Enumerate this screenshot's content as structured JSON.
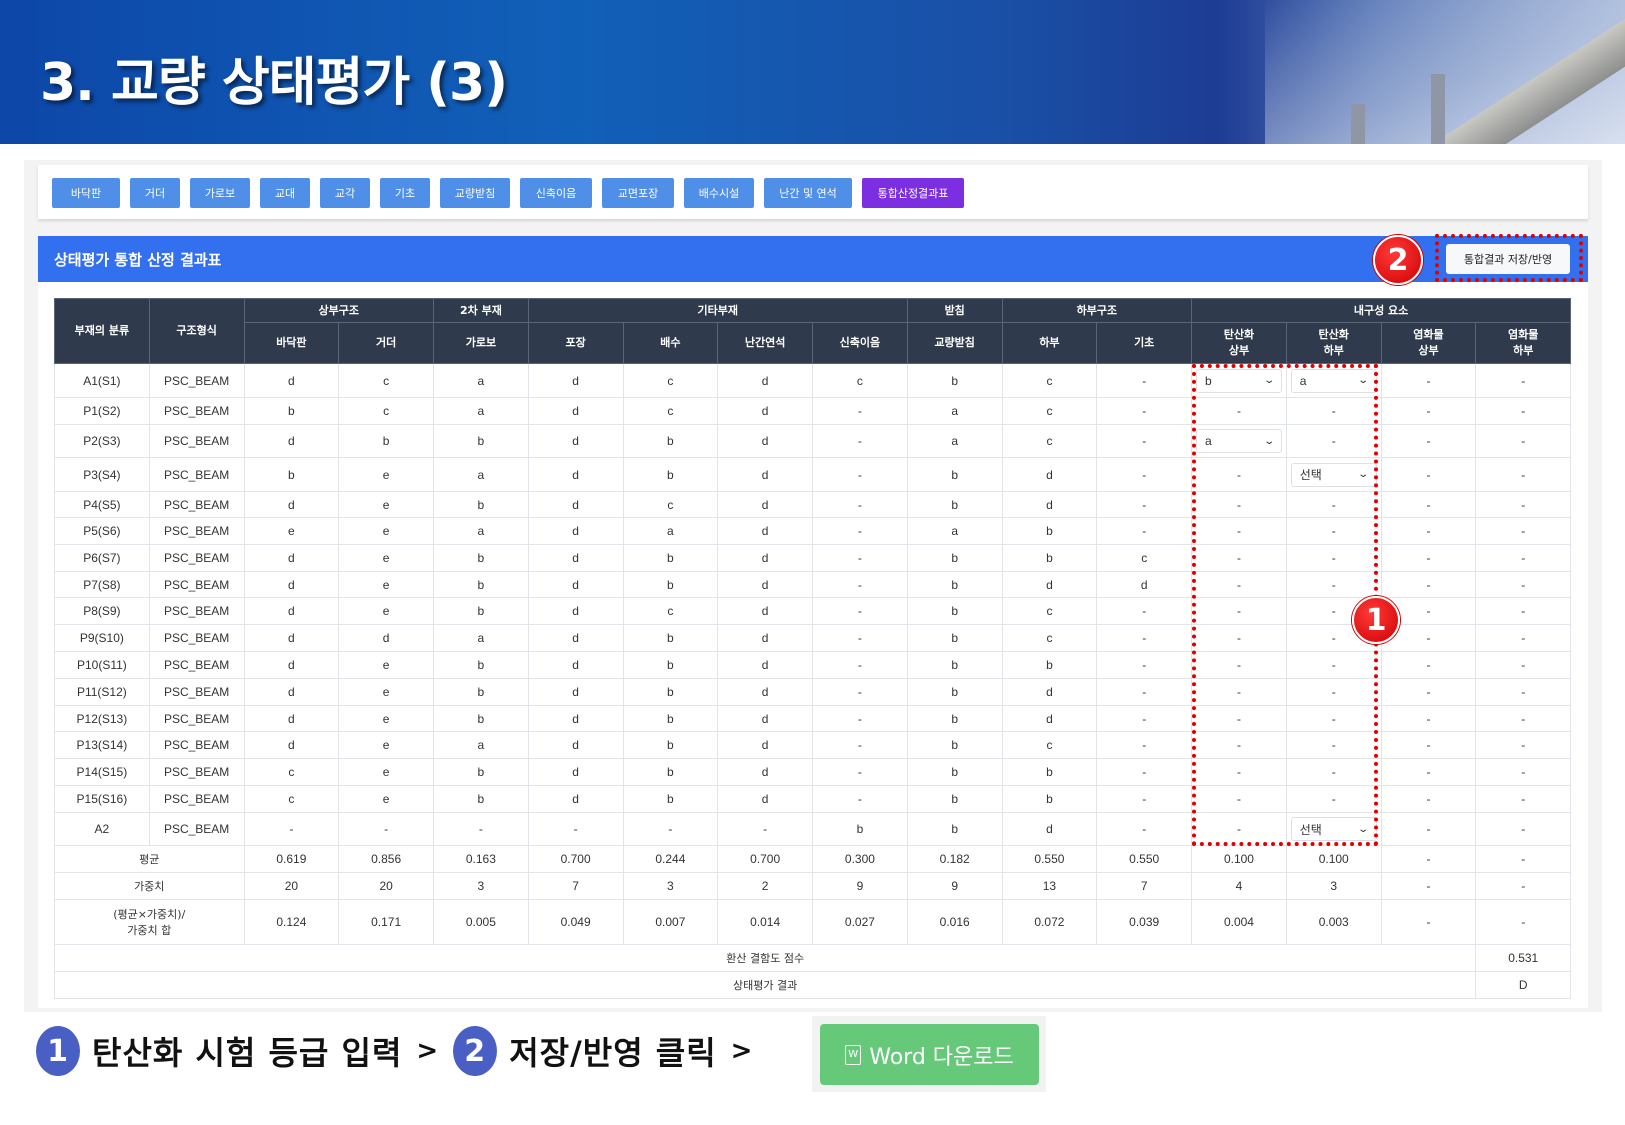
{
  "banner": {
    "title": "3. 교량 상태평가 (3)"
  },
  "tabs": [
    "바닥판",
    "거더",
    "가로보",
    "교대",
    "교각",
    "기초",
    "교량받침",
    "신축이음",
    "교면포장",
    "배수시설",
    "난간 및 연석",
    "통합산정결과표"
  ],
  "active_tab": "통합산정결과표",
  "colors": {
    "tab": "#4f8fe8",
    "active_tab": "#7b2fe0",
    "header": "#3370f0",
    "table_head": "#2f3a4c",
    "highlight": "#e00000",
    "word_button": "#66c97a"
  },
  "result": {
    "title": "상태평가 통합 산정 결과표",
    "save_label": "통합결과 저장/반영",
    "header_groups": {
      "category": "부재의 분류",
      "type": "구조형식",
      "super": "상부구조",
      "secondary": "2차 부재",
      "other": "기타부재",
      "bearing": "받침",
      "sub": "하부구조",
      "durability": "내구성 요소"
    },
    "columns": [
      "바닥판",
      "거더",
      "가로보",
      "포장",
      "배수",
      "난간연석",
      "신축이음",
      "교량받침",
      "하부",
      "기초",
      "탄산화\n상부",
      "탄산화\n하부",
      "염화물\n상부",
      "염화물\n하부"
    ],
    "rows": [
      {
        "name": "A1(S1)",
        "type": "PSC_BEAM",
        "cells": [
          "d",
          "c",
          "a",
          "d",
          "c",
          "d",
          "c",
          "b",
          "c",
          "-",
          {
            "select": "b"
          },
          {
            "select": "a"
          },
          "-",
          "-"
        ]
      },
      {
        "name": "P1(S2)",
        "type": "PSC_BEAM",
        "cells": [
          "b",
          "c",
          "a",
          "d",
          "c",
          "d",
          "-",
          "a",
          "c",
          "-",
          "-",
          "-",
          "-",
          "-"
        ]
      },
      {
        "name": "P2(S3)",
        "type": "PSC_BEAM",
        "cells": [
          "d",
          "b",
          "b",
          "d",
          "b",
          "d",
          "-",
          "a",
          "c",
          "-",
          {
            "select": "a"
          },
          "-",
          "-",
          "-"
        ]
      },
      {
        "name": "P3(S4)",
        "type": "PSC_BEAM",
        "cells": [
          "b",
          "e",
          "a",
          "d",
          "b",
          "d",
          "-",
          "b",
          "d",
          "-",
          "-",
          {
            "select": "선택"
          },
          "-",
          "-"
        ]
      },
      {
        "name": "P4(S5)",
        "type": "PSC_BEAM",
        "cells": [
          "d",
          "e",
          "b",
          "d",
          "c",
          "d",
          "-",
          "b",
          "d",
          "-",
          "-",
          "-",
          "-",
          "-"
        ]
      },
      {
        "name": "P5(S6)",
        "type": "PSC_BEAM",
        "cells": [
          "e",
          "e",
          "a",
          "d",
          "a",
          "d",
          "-",
          "a",
          "b",
          "-",
          "-",
          "-",
          "-",
          "-"
        ]
      },
      {
        "name": "P6(S7)",
        "type": "PSC_BEAM",
        "cells": [
          "d",
          "e",
          "b",
          "d",
          "b",
          "d",
          "-",
          "b",
          "b",
          "c",
          "-",
          "-",
          "-",
          "-"
        ]
      },
      {
        "name": "P7(S8)",
        "type": "PSC_BEAM",
        "cells": [
          "d",
          "e",
          "b",
          "d",
          "b",
          "d",
          "-",
          "b",
          "d",
          "d",
          "-",
          "-",
          "-",
          "-"
        ]
      },
      {
        "name": "P8(S9)",
        "type": "PSC_BEAM",
        "cells": [
          "d",
          "e",
          "b",
          "d",
          "c",
          "d",
          "-",
          "b",
          "c",
          "-",
          "-",
          "-",
          "-",
          "-"
        ]
      },
      {
        "name": "P9(S10)",
        "type": "PSC_BEAM",
        "cells": [
          "d",
          "d",
          "a",
          "d",
          "b",
          "d",
          "-",
          "b",
          "c",
          "-",
          "-",
          "-",
          "-",
          "-"
        ]
      },
      {
        "name": "P10(S11)",
        "type": "PSC_BEAM",
        "cells": [
          "d",
          "e",
          "b",
          "d",
          "b",
          "d",
          "-",
          "b",
          "b",
          "-",
          "-",
          "-",
          "-",
          "-"
        ]
      },
      {
        "name": "P11(S12)",
        "type": "PSC_BEAM",
        "cells": [
          "d",
          "e",
          "b",
          "d",
          "b",
          "d",
          "-",
          "b",
          "d",
          "-",
          "-",
          "-",
          "-",
          "-"
        ]
      },
      {
        "name": "P12(S13)",
        "type": "PSC_BEAM",
        "cells": [
          "d",
          "e",
          "b",
          "d",
          "b",
          "d",
          "-",
          "b",
          "d",
          "-",
          "-",
          "-",
          "-",
          "-"
        ]
      },
      {
        "name": "P13(S14)",
        "type": "PSC_BEAM",
        "cells": [
          "d",
          "e",
          "a",
          "d",
          "b",
          "d",
          "-",
          "b",
          "c",
          "-",
          "-",
          "-",
          "-",
          "-"
        ]
      },
      {
        "name": "P14(S15)",
        "type": "PSC_BEAM",
        "cells": [
          "c",
          "e",
          "b",
          "d",
          "b",
          "d",
          "-",
          "b",
          "b",
          "-",
          "-",
          "-",
          "-",
          "-"
        ]
      },
      {
        "name": "P15(S16)",
        "type": "PSC_BEAM",
        "cells": [
          "c",
          "e",
          "b",
          "d",
          "b",
          "d",
          "-",
          "b",
          "b",
          "-",
          "-",
          "-",
          "-",
          "-"
        ]
      },
      {
        "name": "A2",
        "type": "PSC_BEAM",
        "cells": [
          "-",
          "-",
          "-",
          "-",
          "-",
          "-",
          "b",
          "b",
          "d",
          "-",
          "-",
          {
            "select": "선택"
          },
          "-",
          "-"
        ]
      }
    ],
    "summary": [
      {
        "label": "평균",
        "values": [
          "0.619",
          "0.856",
          "0.163",
          "0.700",
          "0.244",
          "0.700",
          "0.300",
          "0.182",
          "0.550",
          "0.550",
          "0.100",
          "0.100",
          "-",
          "-"
        ]
      },
      {
        "label": "가중치",
        "values": [
          "20",
          "20",
          "3",
          "7",
          "3",
          "2",
          "9",
          "9",
          "13",
          "7",
          "4",
          "3",
          "-",
          "-"
        ]
      },
      {
        "label": "(평균×가중치)/\n가중치 합",
        "values": [
          "0.124",
          "0.171",
          "0.005",
          "0.049",
          "0.007",
          "0.014",
          "0.027",
          "0.016",
          "0.072",
          "0.039",
          "0.004",
          "0.003",
          "-",
          "-"
        ]
      }
    ],
    "score_label": "환산 결함도 점수",
    "score": "0.531",
    "grade_label": "상태평가 결과",
    "grade": "D"
  },
  "annotations": {
    "badge1": "1",
    "badge2": "2"
  },
  "instructions": {
    "step1_num": "1",
    "step1": "탄산화 시험 등급 입력",
    "sep1": ">",
    "step2_num": "2",
    "step2": "저장/반영 클릭",
    "sep2": ">",
    "word_icon": "W",
    "word_button": "Word 다운로드"
  }
}
